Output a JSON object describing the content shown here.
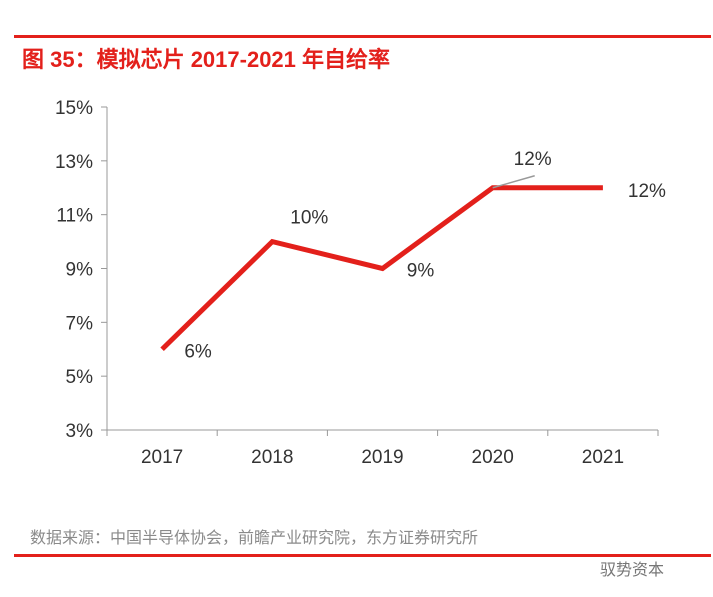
{
  "header": {
    "title": "图 35：模拟芯片 2017-2021 年自给率"
  },
  "footer": {
    "source": "数据来源：中国半导体协会，前瞻产业研究院，东方证券研究所",
    "watermark": "驭势资本"
  },
  "colors": {
    "accent": "#e3201b",
    "line": "#e3201b"
  },
  "chart_data": {
    "type": "line",
    "title": "图 35：模拟芯片 2017-2021 年自给率",
    "categories": [
      "2017",
      "2018",
      "2019",
      "2020",
      "2021"
    ],
    "series": [
      {
        "values": [
          6,
          10,
          9,
          12,
          12
        ]
      }
    ],
    "data_labels": [
      "6%",
      "10%",
      "9%",
      "12%",
      "12%"
    ],
    "ylim": [
      3,
      15
    ],
    "yticks": [
      "3%",
      "5%",
      "7%",
      "9%",
      "11%",
      "13%",
      "15%"
    ],
    "grid": false,
    "xlabel": "",
    "ylabel": ""
  }
}
